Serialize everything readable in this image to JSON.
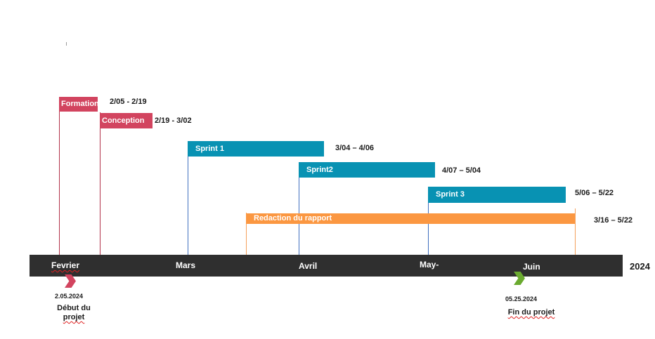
{
  "tasks": [
    {
      "name": "Formation",
      "range": "2/05 - 2/19",
      "color": "#d2445f"
    },
    {
      "name": "Conception",
      "range": "2/19 - 3/02",
      "color": "#d2445f"
    },
    {
      "name": "Sprint 1",
      "range": "3/04 – 4/06",
      "color": "#0892b3"
    },
    {
      "name": "Sprint2",
      "range": "4/07 – 5/04",
      "color": "#0892b3"
    },
    {
      "name": "Sprint 3",
      "range": "5/06 – 5/22",
      "color": "#0892b3"
    },
    {
      "name": "Redaction du rapport",
      "range": "3/16 – 5/22",
      "color": "#fb9741"
    }
  ],
  "timeline": {
    "months": [
      "Fevrier",
      "Mars",
      "Avril",
      "May-",
      "Juin"
    ],
    "year": "2024",
    "bar_color": "#2f2f2f"
  },
  "milestones": {
    "start": {
      "date": "2.05.2024",
      "label_line1": "Début du",
      "label_line2": "projet",
      "color": "#d2445f"
    },
    "end": {
      "date": "05.25.2024",
      "label": "Fin du projet",
      "color": "#6aaa2f"
    }
  }
}
